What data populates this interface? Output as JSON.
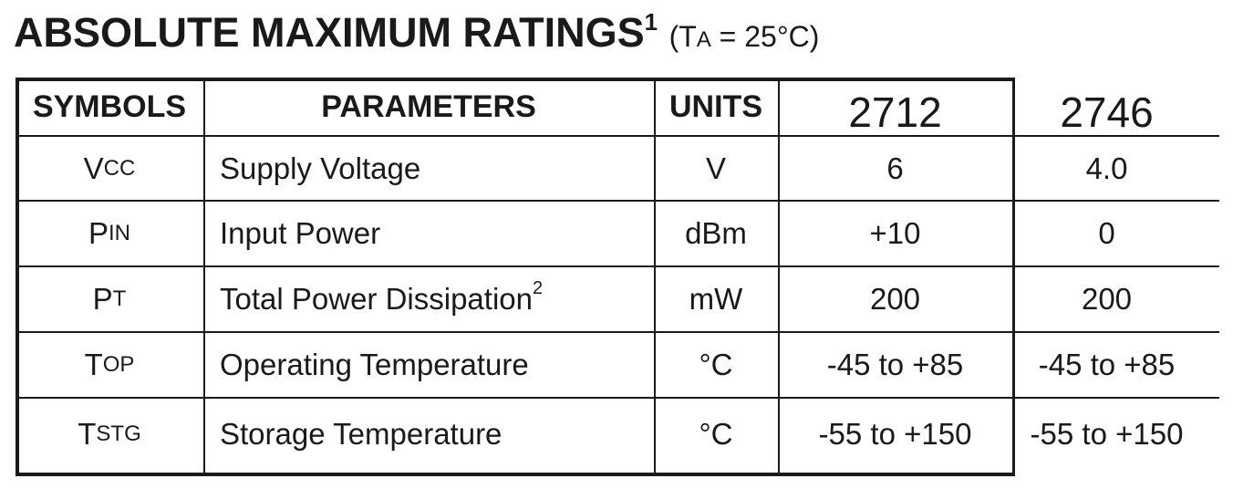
{
  "title": {
    "main": "ABSOLUTE MAXIMUM RATINGS",
    "footnote": "1",
    "cond_open": "(T",
    "cond_sub": "A",
    "cond_rest": " = 25°C)"
  },
  "table": {
    "headers": {
      "symbols": "SYMBOLS",
      "parameters": "PARAMETERS",
      "units": "UNITS",
      "col1": "2712",
      "col2": "2746"
    },
    "rows": [
      {
        "sym_main": "V",
        "sym_sub": "CC",
        "parameter": "Supply Voltage",
        "param_sup": "",
        "unit": "V",
        "v1": "6",
        "v2": "4.0"
      },
      {
        "sym_main": "P",
        "sym_sub": "IN",
        "parameter": "Input Power",
        "param_sup": "",
        "unit": "dBm",
        "v1": "+10",
        "v2": "0"
      },
      {
        "sym_main": "P",
        "sym_sub": "T",
        "parameter": "Total Power Dissipation",
        "param_sup": "2",
        "unit": "mW",
        "v1": "200",
        "v2": "200"
      },
      {
        "sym_main": "T",
        "sym_sub": "OP",
        "parameter": "Operating Temperature",
        "param_sup": "",
        "unit": "°C",
        "v1": "-45 to +85",
        "v2": "-45 to +85"
      },
      {
        "sym_main": "T",
        "sym_sub": "STG",
        "parameter": "Storage Temperature",
        "param_sup": "",
        "unit": "°C",
        "v1": "-55 to +150",
        "v2": "-55 to +150"
      }
    ]
  }
}
